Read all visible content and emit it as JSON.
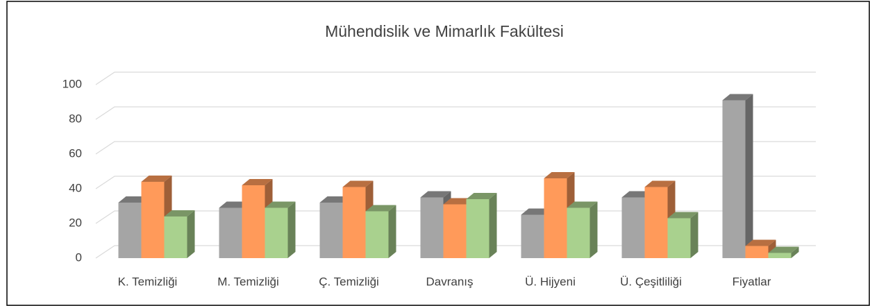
{
  "chart_data": {
    "type": "bar3d",
    "title": "Mühendislik ve Mimarlık Fakültesi",
    "categories": [
      "K. Temizliği",
      "M. Temizliği",
      "Ç. Temizliği",
      "Davranış",
      "Ü. Hijyeni",
      "Ü. Çeşitliliği",
      "Fiyatlar"
    ],
    "series": [
      {
        "color": "#a5a5a5",
        "values": [
          32,
          29,
          32,
          35,
          25,
          35,
          91
        ]
      },
      {
        "color": "#ff9a5a",
        "values": [
          44,
          42,
          41,
          31,
          46,
          41,
          7
        ]
      },
      {
        "color": "#a9d18e",
        "values": [
          24,
          29,
          27,
          34,
          29,
          23,
          3
        ]
      }
    ],
    "ylim": [
      0,
      100
    ],
    "yticks": [
      0,
      20,
      40,
      60,
      80,
      100
    ],
    "grid": true
  }
}
